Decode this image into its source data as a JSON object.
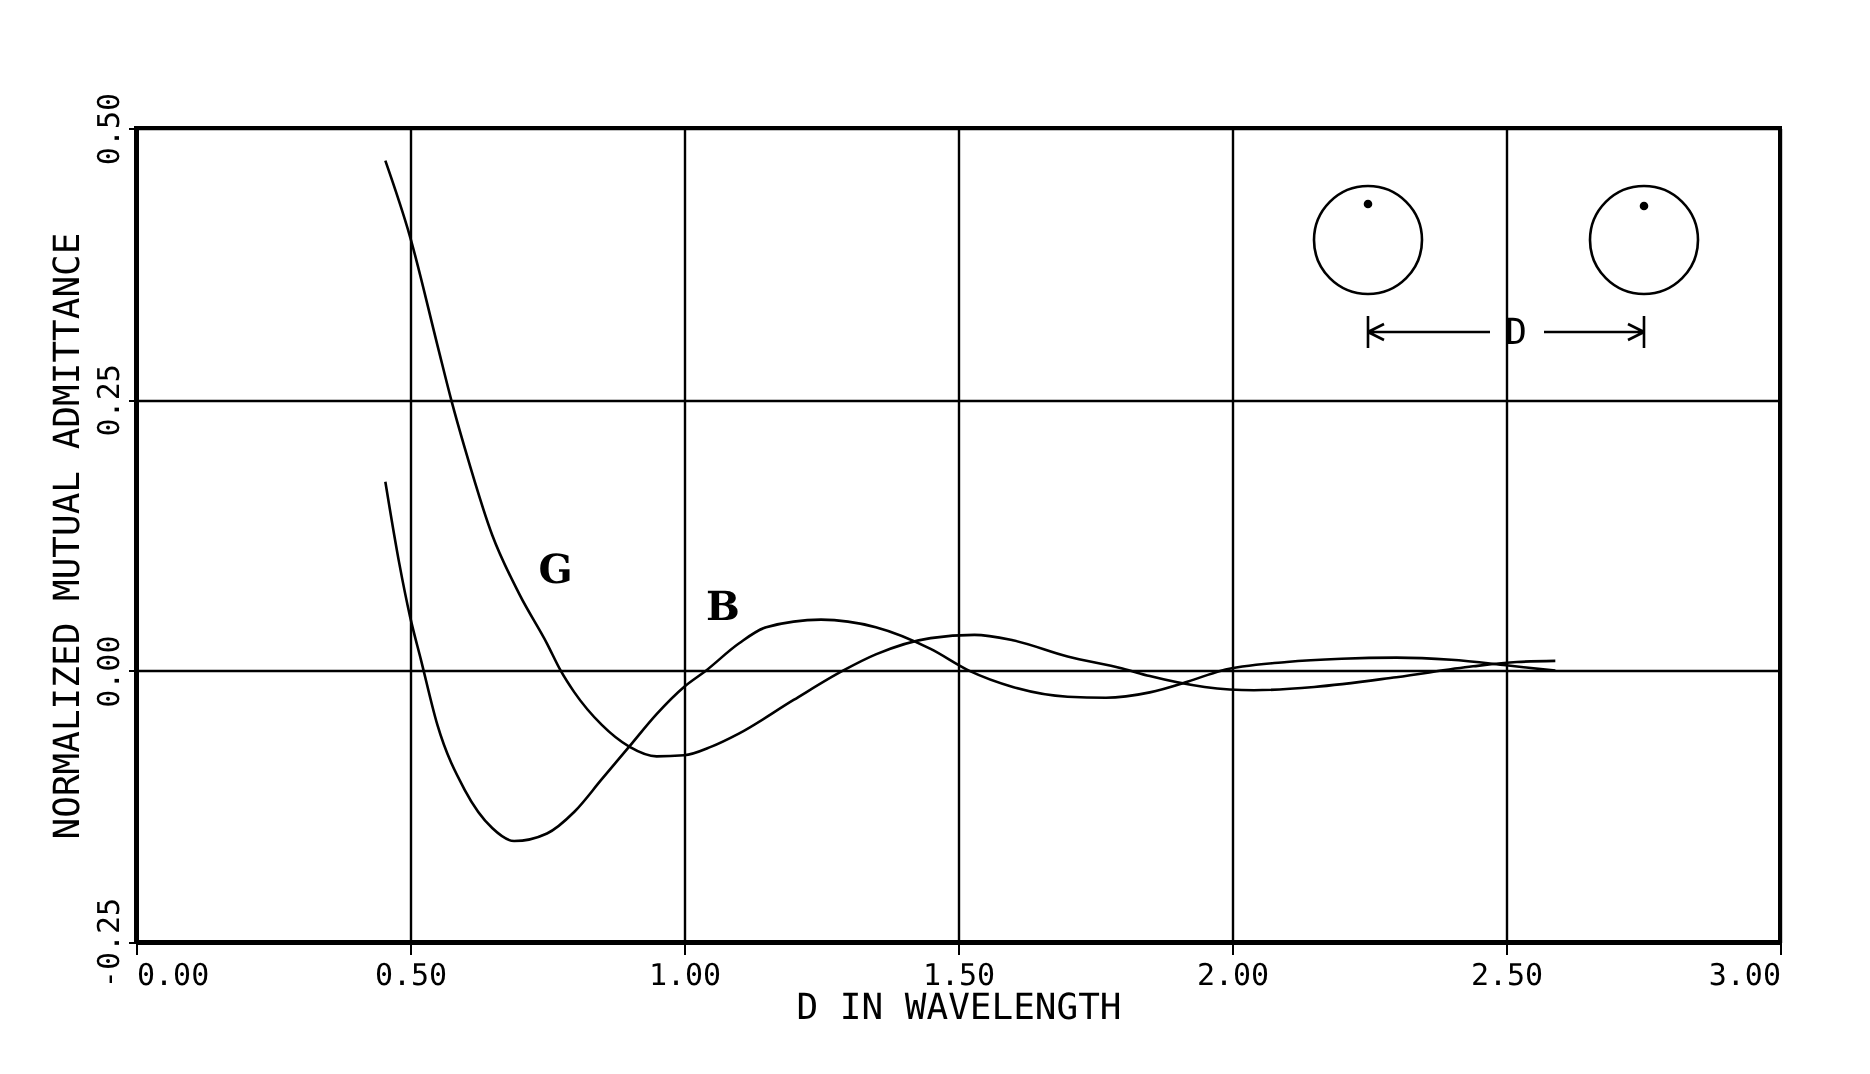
{
  "chart_data": {
    "type": "line",
    "xlabel": "D IN WAVELENGTH",
    "ylabel": "NORMALIZED MUTUAL ADMITTANCE",
    "xlim": [
      0,
      3
    ],
    "ylim": [
      -0.25,
      0.5
    ],
    "xticks": [
      {
        "value": 0,
        "label": "0.00"
      },
      {
        "value": 0.5,
        "label": "0.50"
      },
      {
        "value": 1,
        "label": "1.00"
      },
      {
        "value": 1.5,
        "label": "1.50"
      },
      {
        "value": 2,
        "label": "2.00"
      },
      {
        "value": 2.5,
        "label": "2.50"
      },
      {
        "value": 3,
        "label": "3.00"
      }
    ],
    "yticks": [
      {
        "value": -0.25,
        "label": "-0.25"
      },
      {
        "value": 0,
        "label": "0.00"
      },
      {
        "value": 0.25,
        "label": "0.25"
      },
      {
        "value": 0.5,
        "label": "0.50"
      }
    ],
    "grid": true,
    "legend": false,
    "line_style": "solid",
    "series": [
      {
        "name": "G",
        "color": "#000000",
        "x": [
          0.455,
          0.5,
          0.55,
          0.575,
          0.6,
          0.65,
          0.7,
          0.75,
          0.775,
          0.8,
          0.85,
          0.9,
          0.95,
          1.0,
          1.05,
          1.1,
          1.2,
          1.29,
          1.35,
          1.45,
          1.53,
          1.6,
          1.7,
          1.8,
          1.85,
          1.95,
          2.04,
          2.15,
          2.3,
          2.44,
          2.52,
          2.59
        ],
        "values": [
          0.47,
          0.4,
          0.3,
          0.25,
          0.205,
          0.125,
          0.07,
          0.025,
          0,
          -0.02,
          -0.05,
          -0.07,
          -0.079,
          -0.078,
          -0.07,
          -0.058,
          -0.027,
          0,
          0.015,
          0.03,
          0.033,
          0.028,
          0.013,
          0.002,
          -0.005,
          -0.015,
          -0.018,
          -0.015,
          -0.006,
          0.004,
          0.008,
          0.009
        ]
      },
      {
        "name": "B",
        "color": "#000000",
        "x": [
          0.455,
          0.48,
          0.5,
          0.52,
          0.55,
          0.6,
          0.65,
          0.69,
          0.75,
          0.8,
          0.85,
          0.9,
          0.95,
          1.0,
          1.04,
          1.1,
          1.15,
          1.25,
          1.35,
          1.45,
          1.52,
          1.6,
          1.7,
          1.77,
          1.85,
          1.92,
          1.98,
          2.1,
          2.2,
          2.3,
          2.4,
          2.5,
          2.59
        ],
        "values": [
          0.174,
          0.1,
          0.05,
          0.01,
          -0.05,
          -0.11,
          -0.145,
          -0.157,
          -0.15,
          -0.13,
          -0.1,
          -0.07,
          -0.04,
          -0.015,
          0,
          0.025,
          0.04,
          0.047,
          0.04,
          0.02,
          0,
          -0.015,
          -0.024,
          -0.025,
          -0.02,
          -0.01,
          0,
          0.008,
          0.011,
          0.012,
          0.01,
          0.005,
          0
        ]
      }
    ],
    "annotations": [
      "D"
    ]
  }
}
